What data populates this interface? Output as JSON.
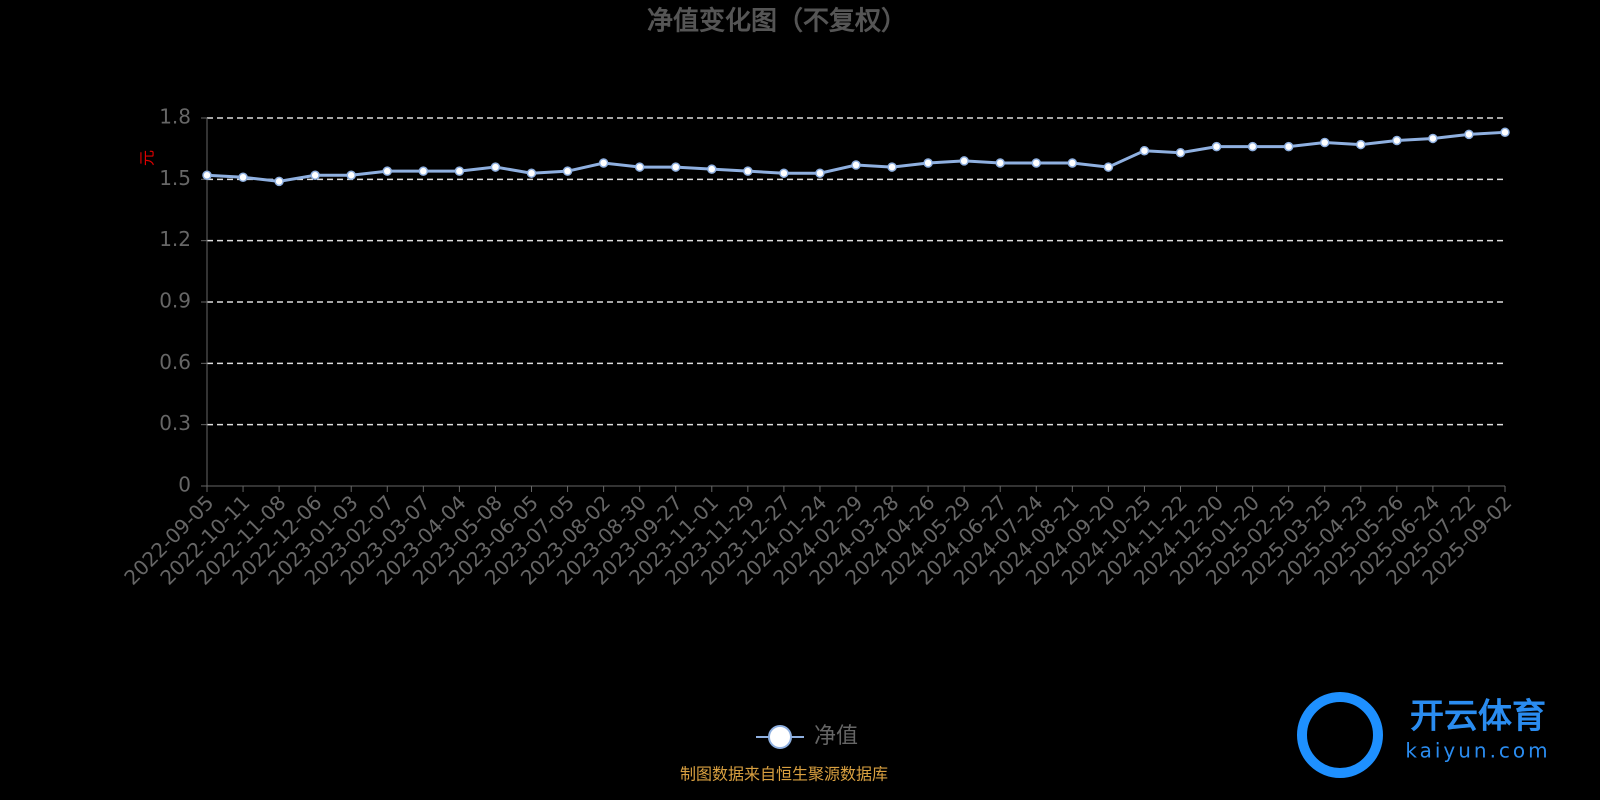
{
  "chart_data": {
    "type": "line",
    "title": "净值变化图（不复权）",
    "y_label": "元",
    "categories": [
      "2022-09-05",
      "2022-10-11",
      "2022-11-08",
      "2022-12-06",
      "2023-01-03",
      "2023-02-07",
      "2023-03-07",
      "2023-04-04",
      "2023-05-08",
      "2023-06-05",
      "2023-07-05",
      "2023-08-02",
      "2023-08-30",
      "2023-09-27",
      "2023-11-01",
      "2023-11-29",
      "2023-12-27",
      "2024-01-24",
      "2024-02-29",
      "2024-03-28",
      "2024-04-26",
      "2024-05-29",
      "2024-06-27",
      "2024-07-24",
      "2024-08-21",
      "2024-09-20",
      "2024-10-25",
      "2024-11-22",
      "2024-12-20",
      "2025-01-20",
      "2025-02-25",
      "2025-03-25",
      "2025-04-23",
      "2025-05-26",
      "2025-06-24",
      "2025-07-22",
      "2025-09-02"
    ],
    "series": [
      {
        "name": "净值",
        "color": "#8fb0e0",
        "values": [
          1.52,
          1.51,
          1.49,
          1.52,
          1.52,
          1.54,
          1.54,
          1.54,
          1.56,
          1.53,
          1.54,
          1.58,
          1.56,
          1.56,
          1.55,
          1.54,
          1.53,
          1.53,
          1.57,
          1.56,
          1.58,
          1.59,
          1.58,
          1.58,
          1.58,
          1.56,
          1.64,
          1.63,
          1.66,
          1.66,
          1.66,
          1.68,
          1.67,
          1.69,
          1.7,
          1.72,
          1.73
        ]
      }
    ],
    "ylim": [
      0,
      1.8
    ],
    "yticks": [
      0,
      0.3,
      0.6,
      0.9,
      1.2,
      1.5,
      1.8
    ],
    "grid": true,
    "source": "制图数据来自恒生聚源数据库"
  },
  "watermark": {
    "brand": "开云体育",
    "url": "kaiyun.com"
  }
}
